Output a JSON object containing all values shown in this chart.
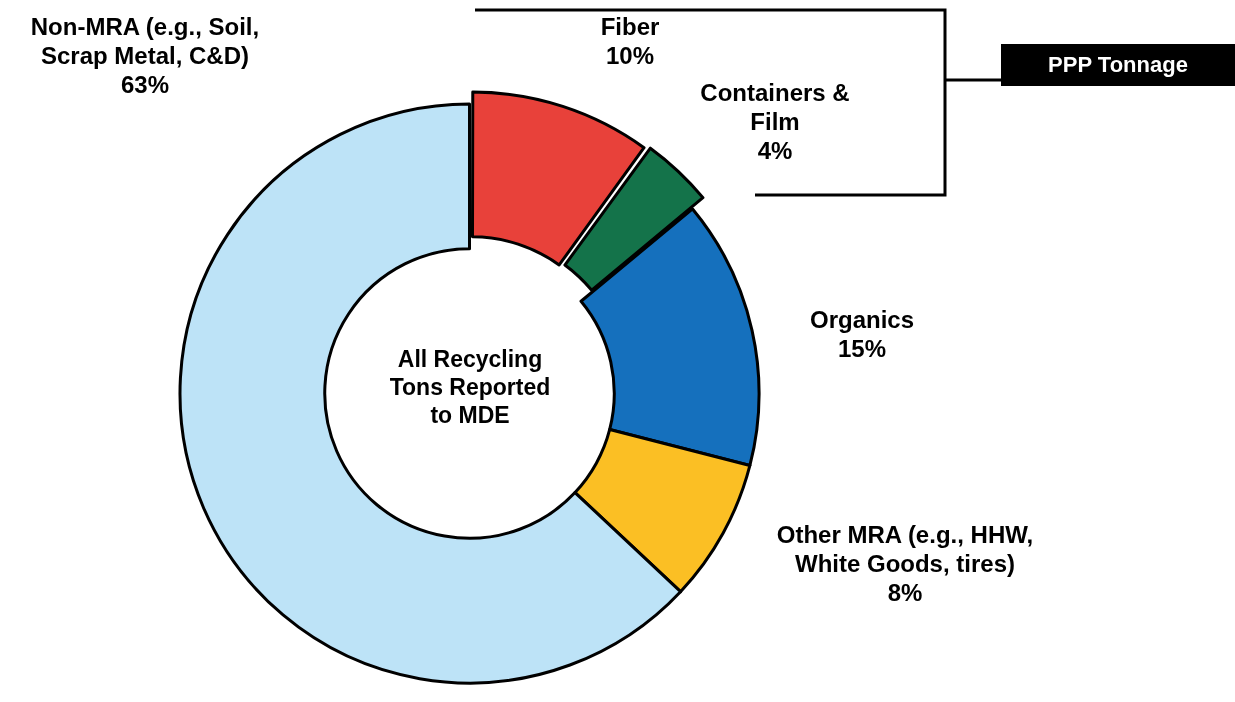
{
  "chart_data": {
    "type": "donut",
    "categories": [
      "Fiber",
      "Containers & Film",
      "Organics",
      "Other MRA (e.g., HHW, White Goods, tires)",
      "Non-MRA (e.g., Soil, Scrap Metal, C&D)"
    ],
    "values": [
      10,
      4,
      15,
      8,
      63
    ],
    "colors": [
      "#e8413a",
      "#14734a",
      "#1570bd",
      "#fbbf24",
      "#bde3f7"
    ],
    "value_labels": [
      "10%",
      "4%",
      "15%",
      "8%",
      "63%"
    ],
    "annotations": [
      "All Recycling Tons Reported to MDE",
      "PPP Tonnage"
    ]
  }
}
